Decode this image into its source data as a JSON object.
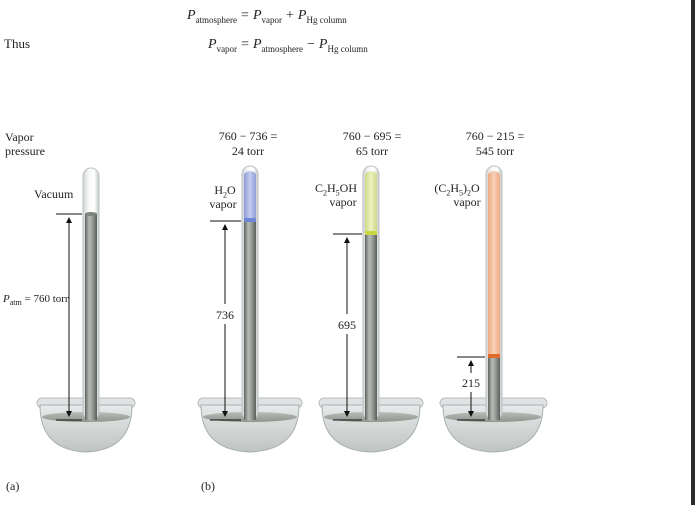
{
  "equations": {
    "line1": {
      "lhs": "P",
      "lhs_sub": "atmosphere",
      "eq": "=",
      "t1": "P",
      "t1_sub": "vapor",
      "op": "+",
      "t2": "P",
      "t2_sub": "Hg column"
    },
    "line2": {
      "lhs": "P",
      "lhs_sub": "vapor",
      "eq": "=",
      "t1": "P",
      "t1_sub": "atmosphere",
      "op": "−",
      "t2": "P",
      "t2_sub": "Hg column"
    }
  },
  "thus_label": "Thus",
  "left_label": {
    "line1": "Vapor",
    "line2": "pressure"
  },
  "tube_a": {
    "vacuum_label": "Vacuum",
    "patm_label_p": "P",
    "patm_label_sub": "atm",
    "patm_label_rest": " = 760 torr"
  },
  "tube_b1": {
    "calc_line1": "760 − 736 =",
    "calc_line2": "24 torr",
    "vapor_formula_main": "H",
    "vapor_formula_sub": "2",
    "vapor_formula_end": "O",
    "vapor_word": "vapor",
    "height_label": "736"
  },
  "tube_b2": {
    "calc_line1": "760 − 695 =",
    "calc_line2": "65 torr",
    "vapor_formula_a": "C",
    "vapor_formula_sub1": "2",
    "vapor_formula_b": "H",
    "vapor_formula_sub2": "5",
    "vapor_formula_c": "OH",
    "vapor_word": "vapor",
    "height_label": "695"
  },
  "tube_b3": {
    "calc_line1": "760 − 215 =",
    "calc_line2": "545 torr",
    "vapor_formula_a": "(C",
    "vapor_formula_sub1": "2",
    "vapor_formula_b": "H",
    "vapor_formula_sub2": "5",
    "vapor_formula_c": ")",
    "vapor_formula_sub3": "2",
    "vapor_formula_d": "O",
    "vapor_word": "vapor",
    "height_label": "215"
  },
  "panel_labels": {
    "a": "(a)",
    "b": "(b)"
  },
  "colors": {
    "mercury": "#8e938e",
    "water_vapor": "#a9b4e6",
    "ethanol_vapor": "#dfe89a",
    "ether_vapor": "#f3bc9a",
    "ether_meniscus": "#e06a2a",
    "ethanol_meniscus": "#c8d640",
    "water_meniscus": "#6f86d8"
  }
}
